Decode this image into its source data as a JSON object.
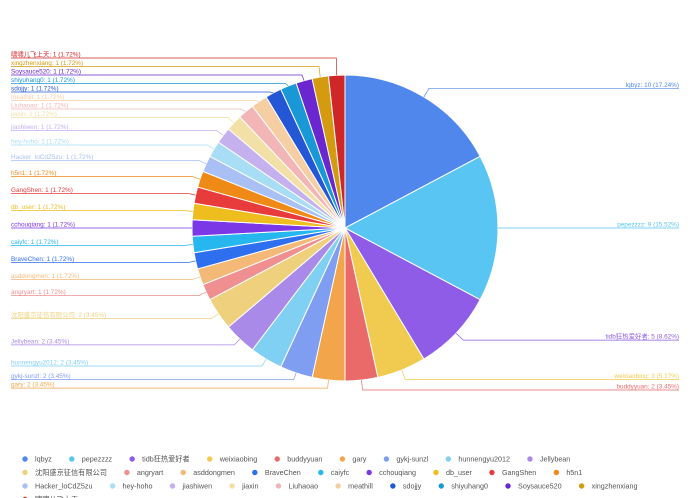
{
  "chart_data": {
    "type": "pie",
    "title": "",
    "legend_position": "bottom",
    "slices": [
      {
        "name": "lqbyz",
        "value": 10,
        "label": "lqbyz: 10 (17.24%)",
        "color": "#5087ec"
      },
      {
        "name": "pepezzzz",
        "value": 9,
        "label": "pepezzzz: 9 (15.52%)",
        "color": "#58c5f2"
      },
      {
        "name": "tidb狂热爱好者",
        "value": 5,
        "label": "tidb狂热爱好者: 5 (8.62%)",
        "color": "#8e5ce7"
      },
      {
        "name": "weixiaobing",
        "value": 3,
        "label": "weixiaobing: 3 (5.17%)",
        "color": "#f0cb4f"
      },
      {
        "name": "buddyyuan",
        "value": 2,
        "label": "buddyyuan: 2 (3.45%)",
        "color": "#ea6a6a"
      },
      {
        "name": "gary",
        "value": 2,
        "label": "gary: 2 (3.45%)",
        "color": "#f2a54b"
      },
      {
        "name": "gykj-sunzl",
        "value": 2,
        "label": "gykj-sunzl: 2 (3.45%)",
        "color": "#7f9ef2"
      },
      {
        "name": "hunnengyu2012",
        "value": 2,
        "label": "hunnengyu2012: 2 (3.45%)",
        "color": "#7fd0f2"
      },
      {
        "name": "Jellybean",
        "value": 2,
        "label": "Jellybean: 2 (3.45%)",
        "color": "#a98ae8"
      },
      {
        "name": "沈阳盛京征信有限公司",
        "value": 2,
        "label": "沈阳盛京征信有限公司: 2 (3.45%)",
        "color": "#efd17d"
      },
      {
        "name": "angryart",
        "value": 1,
        "label": "angryart: 1 (1.72%)",
        "color": "#ef8f8f"
      },
      {
        "name": "asddongmen",
        "value": 1,
        "label": "asddongmen: 1 (1.72%)",
        "color": "#f4b976"
      },
      {
        "name": "BraveChen",
        "value": 1,
        "label": "BraveChen: 1 (1.72%)",
        "color": "#2e6ff0"
      },
      {
        "name": "caiyfc",
        "value": 1,
        "label": "caiyfc: 1 (1.72%)",
        "color": "#27b7ef"
      },
      {
        "name": "cchouqiang",
        "value": 1,
        "label": "cchouqiang: 1 (1.72%)",
        "color": "#7b38e6"
      },
      {
        "name": "db_user",
        "value": 1,
        "label": "db_user: 1 (1.72%)",
        "color": "#eebd1e"
      },
      {
        "name": "GangShen",
        "value": 1,
        "label": "GangShen: 1 (1.72%)",
        "color": "#e83b3b"
      },
      {
        "name": "h5n1",
        "value": 1,
        "label": "h5n1: 1 (1.72%)",
        "color": "#f08a17"
      },
      {
        "name": "Hacker_loCdZ5zu",
        "value": 1,
        "label": "Hacker_loCdZ5zu: 1 (1.72%)",
        "color": "#a9c0f5"
      },
      {
        "name": "hey-hoho",
        "value": 1,
        "label": "hey-hoho: 1 (1.72%)",
        "color": "#a8def5"
      },
      {
        "name": "jiashiwen",
        "value": 1,
        "label": "jiashiwen: 1 (1.72%)",
        "color": "#c6b1ef"
      },
      {
        "name": "jiaxin",
        "value": 1,
        "label": "jiaxin: 1 (1.72%)",
        "color": "#f2e0a6"
      },
      {
        "name": "Liuhaoao",
        "value": 1,
        "label": "Liuhaoao: 1 (1.72%)",
        "color": "#f2b6b6"
      },
      {
        "name": "meathill",
        "value": 1,
        "label": "meathill: 1 (1.72%)",
        "color": "#f5cfa3"
      },
      {
        "name": "sdojjy",
        "value": 1,
        "label": "sdojjy: 1 (1.72%)",
        "color": "#2357d6"
      },
      {
        "name": "shiyuhang0",
        "value": 1,
        "label": "shiyuhang0: 1 (1.72%)",
        "color": "#1898d6"
      },
      {
        "name": "Soysauce520",
        "value": 1,
        "label": "Soysauce520: 1 (1.72%)",
        "color": "#6a27cf"
      },
      {
        "name": "xingzhenxiang",
        "value": 1,
        "label": "xingzhenxiang: 1 (1.72%)",
        "color": "#d49a10"
      },
      {
        "name": "啸啸儿飞上天",
        "value": 1,
        "label": "啸啸儿飞上天: 1 (1.72%)",
        "color": "#cf2727"
      }
    ]
  }
}
